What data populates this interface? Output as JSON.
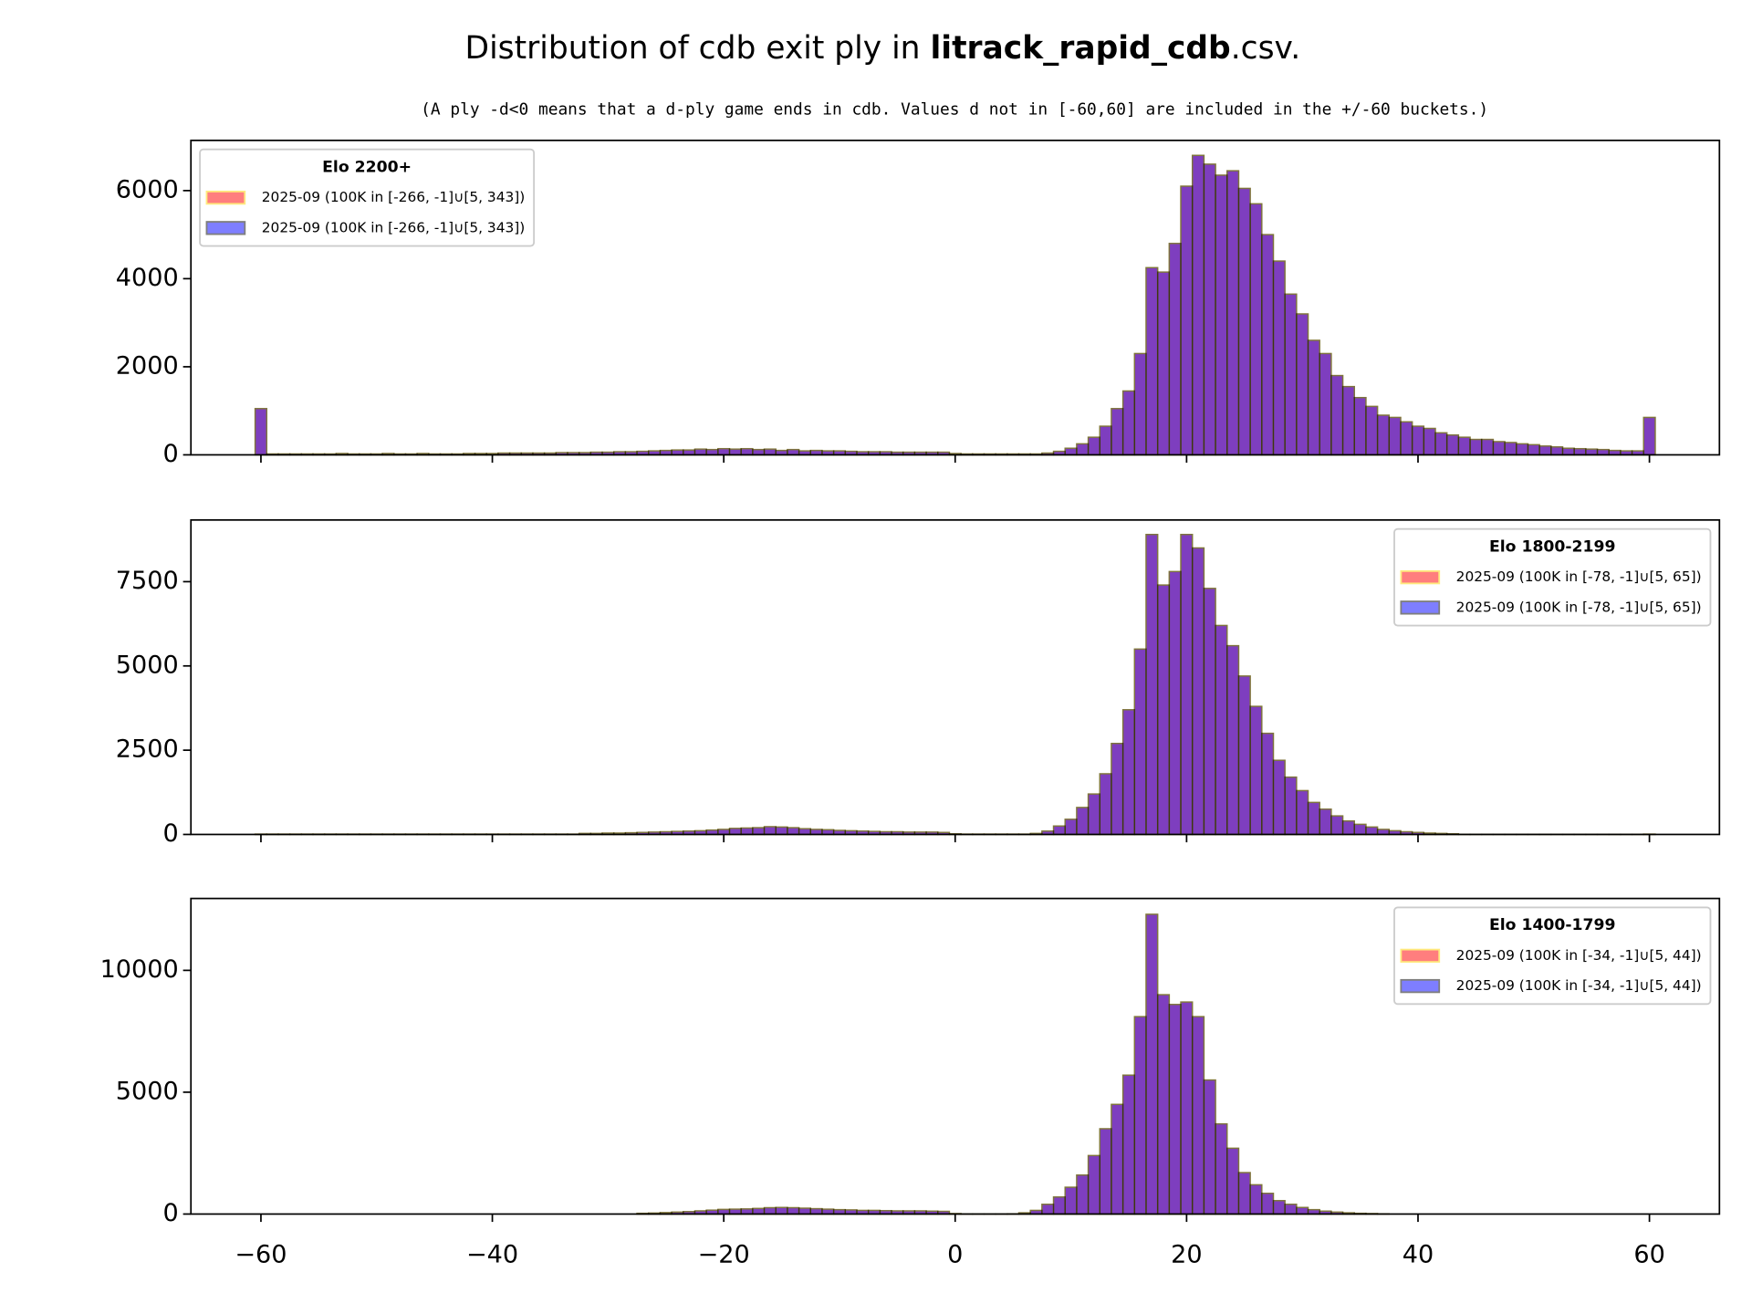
{
  "title_parts": [
    "Distribution of cdb exit ply in ",
    "litrack_rapid_cdb",
    ".csv."
  ],
  "subtitle": "(A ply -d<0 means that a d-ply game ends in cdb. Values d not in [-60,60] are included in the +/-60 buckets.)",
  "chart_data": [
    {
      "type": "histogram",
      "legend_title": "Elo 2200+",
      "legend": "upper left",
      "series": [
        {
          "name": "2025-09   (100K in [-266, -1]∪[5, 343])",
          "color": "#ff0000",
          "edgecolor": "#ffd700"
        },
        {
          "name": "2025-09   (100K in [-266, -1]∪[5, 343])",
          "color": "#0000ff",
          "edgecolor": "#000000"
        }
      ],
      "bins": [
        -60.5,
        -59.5,
        -58.5,
        -57.5,
        -56.5,
        -55.5,
        -54.5,
        -53.5,
        -52.5,
        -51.5,
        -50.5,
        -49.5,
        -48.5,
        -47.5,
        -46.5,
        -45.5,
        -44.5,
        -43.5,
        -42.5,
        -41.5,
        -40.5,
        -39.5,
        -38.5,
        -37.5,
        -36.5,
        -35.5,
        -34.5,
        -33.5,
        -32.5,
        -31.5,
        -30.5,
        -29.5,
        -28.5,
        -27.5,
        -26.5,
        -25.5,
        -24.5,
        -23.5,
        -22.5,
        -21.5,
        -20.5,
        -19.5,
        -18.5,
        -17.5,
        -16.5,
        -15.5,
        -14.5,
        -13.5,
        -12.5,
        -11.5,
        -10.5,
        -9.5,
        -8.5,
        -7.5,
        -6.5,
        -5.5,
        -4.5,
        -3.5,
        -2.5,
        -1.5,
        -0.5,
        0.5,
        1.5,
        2.5,
        3.5,
        4.5,
        5.5,
        6.5,
        7.5,
        8.5,
        9.5,
        10.5,
        11.5,
        12.5,
        13.5,
        14.5,
        15.5,
        16.5,
        17.5,
        18.5,
        19.5,
        20.5,
        21.5,
        22.5,
        23.5,
        24.5,
        25.5,
        26.5,
        27.5,
        28.5,
        29.5,
        30.5,
        31.5,
        32.5,
        33.5,
        34.5,
        35.5,
        36.5,
        37.5,
        38.5,
        39.5,
        40.5,
        41.5,
        42.5,
        43.5,
        44.5,
        45.5,
        46.5,
        47.5,
        48.5,
        49.5,
        50.5,
        51.5,
        52.5,
        53.5,
        54.5,
        55.5,
        56.5,
        57.5,
        58.5,
        59.5,
        60.5
      ],
      "counts": [
        1050,
        20,
        20,
        20,
        20,
        20,
        20,
        30,
        20,
        20,
        20,
        30,
        20,
        20,
        30,
        20,
        20,
        20,
        30,
        30,
        30,
        40,
        40,
        40,
        40,
        40,
        50,
        50,
        50,
        60,
        60,
        70,
        70,
        80,
        90,
        100,
        110,
        110,
        130,
        120,
        140,
        130,
        140,
        120,
        130,
        100,
        120,
        90,
        100,
        90,
        90,
        80,
        70,
        70,
        70,
        60,
        60,
        60,
        60,
        60,
        30,
        20,
        20,
        20,
        20,
        20,
        20,
        20,
        40,
        80,
        150,
        250,
        400,
        650,
        1050,
        1450,
        2300,
        4250,
        4150,
        4800,
        6100,
        6800,
        6600,
        6350,
        6450,
        6050,
        5700,
        5000,
        4400,
        3650,
        3200,
        2600,
        2300,
        1800,
        1550,
        1300,
        1100,
        900,
        850,
        750,
        650,
        600,
        500,
        450,
        400,
        350,
        350,
        300,
        280,
        250,
        230,
        200,
        180,
        150,
        140,
        130,
        120,
        100,
        90,
        90,
        850
      ],
      "xlim": [
        -66.05,
        66.05
      ],
      "xticks": [
        -60,
        -40,
        -20,
        0,
        20,
        40,
        60
      ],
      "ylim": [
        0,
        7140
      ],
      "yticks": [
        0,
        2000,
        4000,
        6000
      ]
    },
    {
      "type": "histogram",
      "legend_title": "Elo 1800-2199",
      "legend": "upper right",
      "series": [
        {
          "name": "2025-09   (100K in [-78, -1]∪[5, 65])",
          "color": "#ff0000",
          "edgecolor": "#ffd700"
        },
        {
          "name": "2025-09   (100K in [-78, -1]∪[5, 65])",
          "color": "#0000ff",
          "edgecolor": "#000000"
        }
      ],
      "bins": [
        -60.5,
        -59.5,
        -58.5,
        -57.5,
        -56.5,
        -55.5,
        -54.5,
        -53.5,
        -52.5,
        -51.5,
        -50.5,
        -49.5,
        -48.5,
        -47.5,
        -46.5,
        -45.5,
        -44.5,
        -43.5,
        -42.5,
        -41.5,
        -40.5,
        -39.5,
        -38.5,
        -37.5,
        -36.5,
        -35.5,
        -34.5,
        -33.5,
        -32.5,
        -31.5,
        -30.5,
        -29.5,
        -28.5,
        -27.5,
        -26.5,
        -25.5,
        -24.5,
        -23.5,
        -22.5,
        -21.5,
        -20.5,
        -19.5,
        -18.5,
        -17.5,
        -16.5,
        -15.5,
        -14.5,
        -13.5,
        -12.5,
        -11.5,
        -10.5,
        -9.5,
        -8.5,
        -7.5,
        -6.5,
        -5.5,
        -4.5,
        -3.5,
        -2.5,
        -1.5,
        -0.5,
        0.5,
        1.5,
        2.5,
        3.5,
        4.5,
        5.5,
        6.5,
        7.5,
        8.5,
        9.5,
        10.5,
        11.5,
        12.5,
        13.5,
        14.5,
        15.5,
        16.5,
        17.5,
        18.5,
        19.5,
        20.5,
        21.5,
        22.5,
        23.5,
        24.5,
        25.5,
        26.5,
        27.5,
        28.5,
        29.5,
        30.5,
        31.5,
        32.5,
        33.5,
        34.5,
        35.5,
        36.5,
        37.5,
        38.5,
        39.5,
        40.5,
        41.5,
        42.5,
        43.5,
        44.5,
        45.5,
        46.5,
        47.5,
        48.5,
        49.5,
        50.5,
        51.5,
        52.5,
        53.5,
        54.5,
        55.5,
        56.5,
        57.5,
        58.5,
        59.5,
        60.5
      ],
      "counts": [
        10,
        10,
        10,
        10,
        10,
        10,
        10,
        10,
        10,
        10,
        10,
        10,
        10,
        10,
        10,
        10,
        10,
        10,
        10,
        10,
        10,
        10,
        10,
        10,
        10,
        10,
        10,
        10,
        30,
        30,
        40,
        40,
        50,
        60,
        70,
        80,
        90,
        100,
        110,
        130,
        150,
        180,
        190,
        200,
        230,
        220,
        200,
        170,
        150,
        140,
        120,
        110,
        100,
        90,
        80,
        80,
        70,
        70,
        70,
        60,
        20,
        10,
        10,
        10,
        10,
        10,
        10,
        30,
        100,
        250,
        450,
        800,
        1200,
        1800,
        2700,
        3700,
        5500,
        8900,
        7400,
        7800,
        8900,
        8500,
        7300,
        6200,
        5600,
        4700,
        3800,
        3000,
        2200,
        1700,
        1300,
        950,
        750,
        550,
        400,
        300,
        220,
        150,
        110,
        80,
        60,
        40,
        30,
        20,
        5,
        5,
        5,
        5,
        5,
        5,
        5,
        5,
        5,
        5,
        5,
        5,
        5,
        5,
        5,
        5,
        10
      ],
      "xlim": [
        -66.05,
        66.05
      ],
      "xticks": [
        -60,
        -40,
        -20,
        0,
        20,
        40,
        60
      ],
      "ylim": [
        0,
        9330
      ],
      "yticks": [
        0,
        2500,
        5000,
        7500
      ]
    },
    {
      "type": "histogram",
      "legend_title": "Elo 1400-1799",
      "legend": "upper right",
      "series": [
        {
          "name": "2025-09   (100K in [-34, -1]∪[5, 44])",
          "color": "#ff0000",
          "edgecolor": "#ffd700"
        },
        {
          "name": "2025-09   (100K in [-34, -1]∪[5, 44])",
          "color": "#0000ff",
          "edgecolor": "#000000"
        }
      ],
      "bins": [
        -60.5,
        -59.5,
        -58.5,
        -57.5,
        -56.5,
        -55.5,
        -54.5,
        -53.5,
        -52.5,
        -51.5,
        -50.5,
        -49.5,
        -48.5,
        -47.5,
        -46.5,
        -45.5,
        -44.5,
        -43.5,
        -42.5,
        -41.5,
        -40.5,
        -39.5,
        -38.5,
        -37.5,
        -36.5,
        -35.5,
        -34.5,
        -33.5,
        -32.5,
        -31.5,
        -30.5,
        -29.5,
        -28.5,
        -27.5,
        -26.5,
        -25.5,
        -24.5,
        -23.5,
        -22.5,
        -21.5,
        -20.5,
        -19.5,
        -18.5,
        -17.5,
        -16.5,
        -15.5,
        -14.5,
        -13.5,
        -12.5,
        -11.5,
        -10.5,
        -9.5,
        -8.5,
        -7.5,
        -6.5,
        -5.5,
        -4.5,
        -3.5,
        -2.5,
        -1.5,
        -0.5,
        0.5,
        1.5,
        2.5,
        3.5,
        4.5,
        5.5,
        6.5,
        7.5,
        8.5,
        9.5,
        10.5,
        11.5,
        12.5,
        13.5,
        14.5,
        15.5,
        16.5,
        17.5,
        18.5,
        19.5,
        20.5,
        21.5,
        22.5,
        23.5,
        24.5,
        25.5,
        26.5,
        27.5,
        28.5,
        29.5,
        30.5,
        31.5,
        32.5,
        33.5,
        34.5,
        35.5,
        36.5,
        37.5,
        38.5,
        39.5,
        40.5,
        41.5,
        42.5,
        43.5,
        44.5,
        45.5,
        46.5,
        47.5,
        48.5,
        49.5,
        50.5,
        51.5,
        52.5,
        53.5,
        54.5,
        55.5,
        56.5,
        57.5,
        58.5,
        59.5,
        60.5
      ],
      "counts": [
        0,
        0,
        0,
        0,
        0,
        0,
        0,
        0,
        0,
        0,
        0,
        0,
        0,
        0,
        0,
        0,
        0,
        0,
        0,
        0,
        0,
        0,
        0,
        0,
        0,
        0,
        0,
        0,
        0,
        0,
        0,
        0,
        0,
        30,
        40,
        60,
        80,
        100,
        130,
        160,
        190,
        200,
        210,
        230,
        260,
        270,
        260,
        240,
        220,
        200,
        180,
        170,
        150,
        150,
        140,
        130,
        130,
        130,
        120,
        110,
        20,
        5,
        5,
        5,
        5,
        10,
        50,
        150,
        400,
        700,
        1100,
        1600,
        2400,
        3500,
        4500,
        5700,
        8100,
        12300,
        9000,
        8600,
        8700,
        8100,
        5500,
        3700,
        2700,
        1700,
        1200,
        850,
        550,
        400,
        270,
        180,
        120,
        80,
        50,
        30,
        20,
        10,
        0,
        0,
        0,
        0,
        0,
        0,
        0,
        0,
        0,
        0,
        0,
        0,
        0,
        0,
        0,
        0,
        0,
        0,
        0,
        0,
        0,
        0,
        0
      ],
      "xlim": [
        -66.05,
        66.05
      ],
      "xticks": [
        {
          "value": -60,
          "label": "−60"
        },
        {
          "value": -40,
          "label": "−40"
        },
        {
          "value": -20,
          "label": "−20"
        },
        0,
        20,
        40,
        60
      ],
      "ylim": [
        0,
        12950
      ],
      "yticks": [
        0,
        5000,
        10000
      ]
    }
  ]
}
